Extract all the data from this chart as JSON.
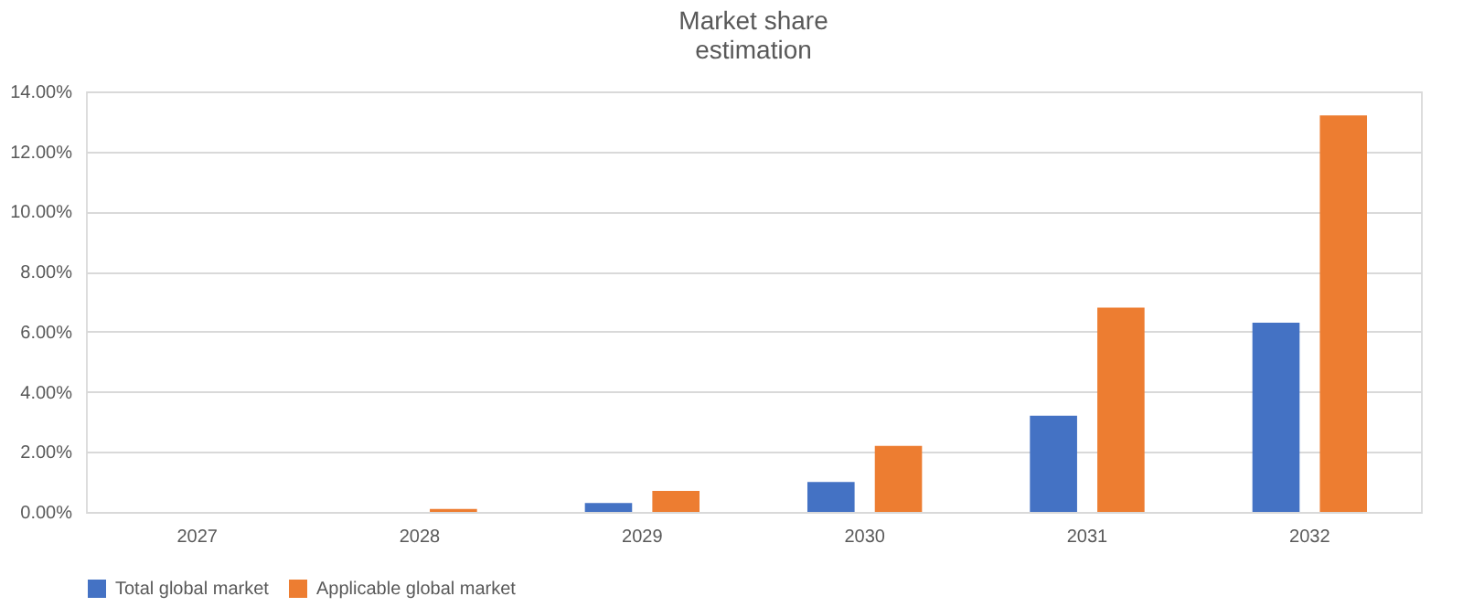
{
  "chart_data": {
    "type": "bar",
    "title": "Market share\nestimation",
    "categories": [
      "2027",
      "2028",
      "2029",
      "2030",
      "2031",
      "2032"
    ],
    "series": [
      {
        "name": "Total global market",
        "color": "#4472c4",
        "values": [
          0,
          0,
          0.3,
          1.0,
          3.2,
          6.3
        ]
      },
      {
        "name": "Applicable global market",
        "color": "#ed7d31",
        "values": [
          0,
          0.1,
          0.7,
          2.2,
          6.8,
          13.2
        ]
      }
    ],
    "ylim": [
      0,
      14
    ],
    "yticks": [
      {
        "value": 0,
        "label": "0.00%"
      },
      {
        "value": 2,
        "label": "2.00%"
      },
      {
        "value": 4,
        "label": "4.00%"
      },
      {
        "value": 6,
        "label": "6.00%"
      },
      {
        "value": 8,
        "label": "8.00%"
      },
      {
        "value": 10,
        "label": "10.00%"
      },
      {
        "value": 12,
        "label": "12.00%"
      },
      {
        "value": 14,
        "label": "14.00%"
      }
    ],
    "grid": "y",
    "legend": "bottom"
  }
}
